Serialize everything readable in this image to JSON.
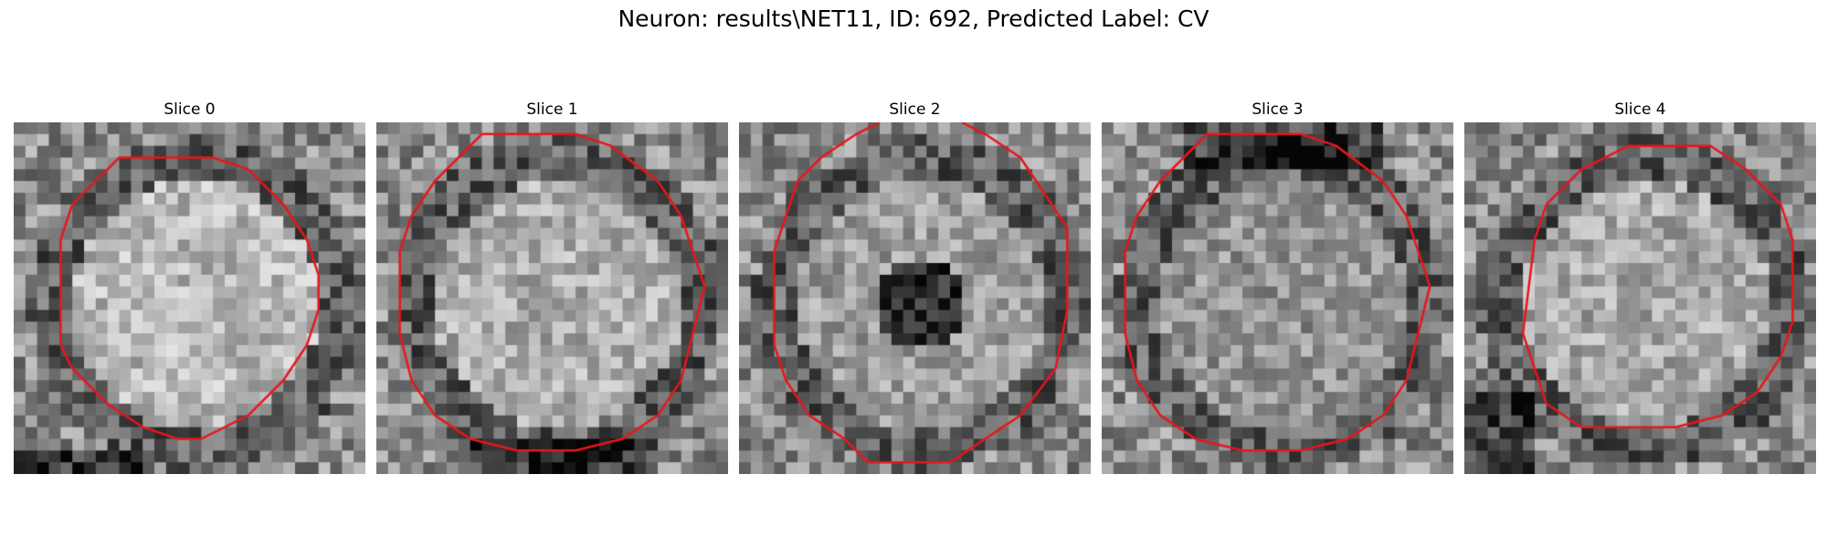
{
  "figure": {
    "title": "Neuron: results\\NET11, ID: 692, Predicted Label: CV",
    "contour_color": "#e8161b",
    "slices": [
      {
        "label": "Slice 0",
        "seed": 11,
        "center_brightness": 0.72,
        "dark_ring": "lower",
        "contour_style": "octagon-left"
      },
      {
        "label": "Slice 1",
        "seed": 23,
        "center_brightness": 0.68,
        "dark_ring": "bottom",
        "contour_style": "octagon-wide"
      },
      {
        "label": "Slice 2",
        "seed": 37,
        "center_brightness": 0.62,
        "dark_ring": "center-dark",
        "contour_style": "octagon-clipped"
      },
      {
        "label": "Slice 3",
        "seed": 41,
        "center_brightness": 0.58,
        "dark_ring": "top",
        "contour_style": "octagon-wide"
      },
      {
        "label": "Slice 4",
        "seed": 53,
        "center_brightness": 0.66,
        "dark_ring": "bottom-left",
        "contour_style": "octagon-right"
      }
    ]
  }
}
